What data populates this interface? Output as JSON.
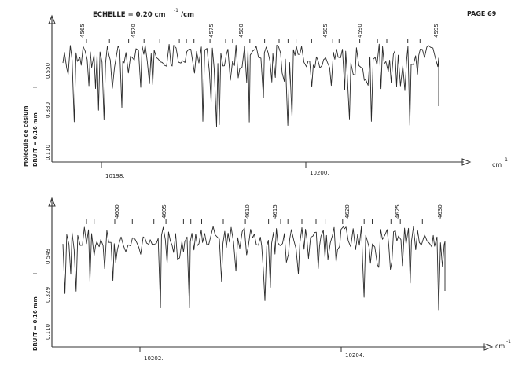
{
  "header": {
    "scale_label": "ECHELLE = 0.20 cm",
    "scale_exp": "-1",
    "scale_suffix": "/cm",
    "page": "PAGE 69"
  },
  "chart_data": [
    {
      "type": "line",
      "title": "",
      "ylabel_molecule": "Molécule de césium",
      "ylabel_noise": "BRUIT = 0.16 mm",
      "yticks": [
        "0.110",
        "0.330",
        "0.550"
      ],
      "ylim": [
        0.0,
        0.7
      ],
      "x_unit": "cm",
      "x_unit_exp": "-1",
      "x_ticks": [
        "10198.",
        "10200."
      ],
      "line_numbers": [
        "4565",
        "4570",
        "4575",
        "4580",
        "4585",
        "4590",
        "4595"
      ],
      "marker_symbol": "I"
    },
    {
      "type": "line",
      "title": "",
      "ylabel_noise": "BRUIT = 0.16 mm",
      "yticks": [
        "0.110",
        "0.329",
        "0.549"
      ],
      "ylim": [
        0.0,
        0.7
      ],
      "x_unit": "cm",
      "x_unit_exp": "-1",
      "x_ticks": [
        "10202.",
        "10204."
      ],
      "line_numbers": [
        "4600",
        "4605",
        "4610",
        "4615",
        "4620",
        "4625",
        "4630"
      ],
      "marker_symbol": "I"
    }
  ]
}
